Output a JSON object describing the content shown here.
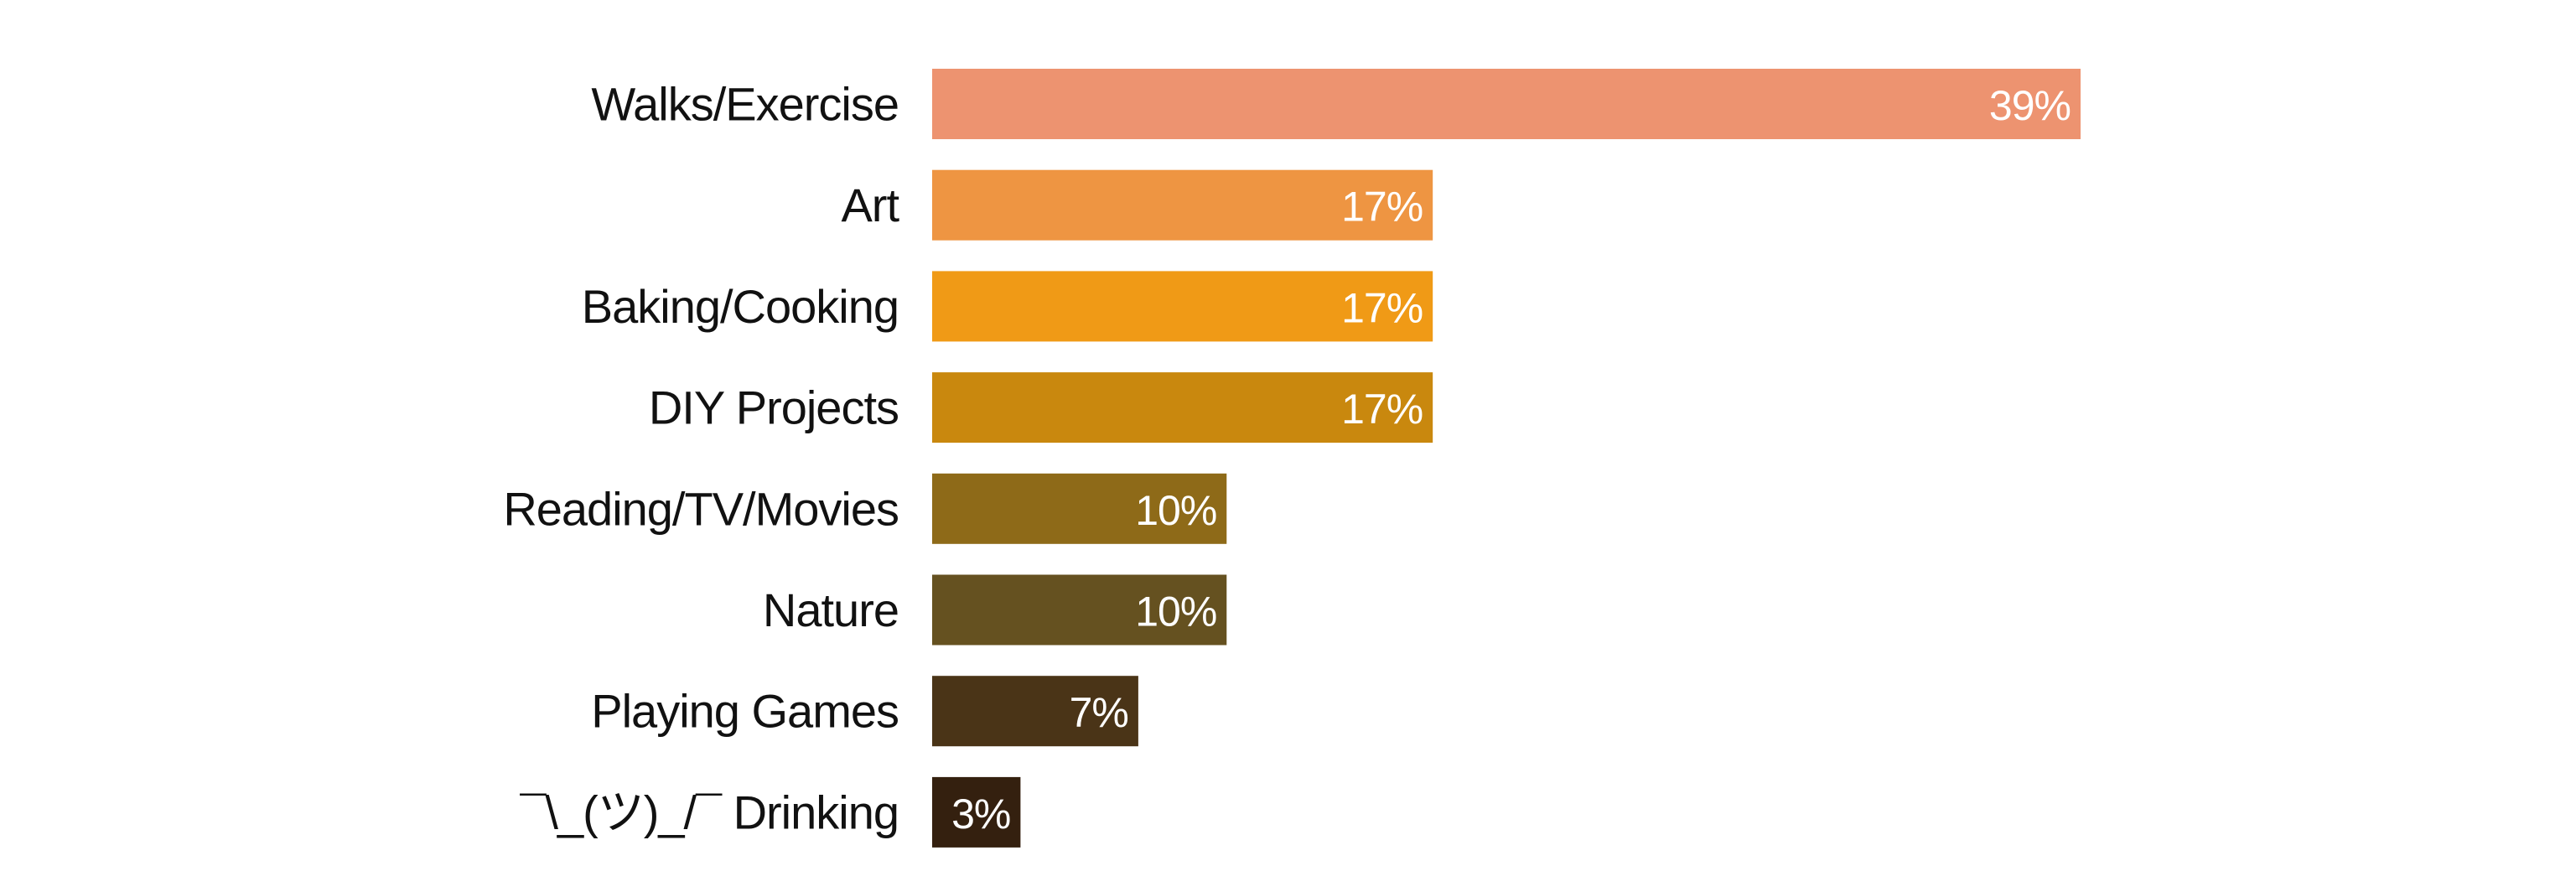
{
  "chart_data": {
    "type": "bar",
    "orientation": "horizontal",
    "categories": [
      "Walks/Exercise",
      "Art",
      "Baking/Cooking",
      "DIY Projects",
      "Reading/TV/Movies",
      "Nature",
      "Playing Games",
      "¯\\_(ツ)_/¯ Drinking"
    ],
    "values": [
      39,
      17,
      17,
      17,
      10,
      10,
      7,
      3
    ],
    "value_labels": [
      "39%",
      "17%",
      "17%",
      "17%",
      "10%",
      "10%",
      "7%",
      "3%"
    ],
    "colors": [
      "#ED9370",
      "#EE9542",
      "#F09A16",
      "#C9880E",
      "#8E6A18",
      "#655120",
      "#4A3417",
      "#34200F"
    ],
    "xlim": [
      0,
      39
    ],
    "grid": false,
    "legend": "none"
  }
}
